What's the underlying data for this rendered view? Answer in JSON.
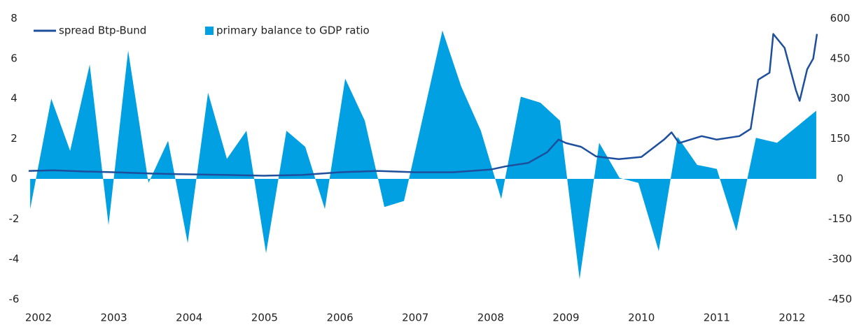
{
  "chart_data": {
    "type": "area-line",
    "xlim": [
      2001.85,
      2012.33
    ],
    "xticks": [
      2002,
      2003,
      2004,
      2005,
      2006,
      2007,
      2008,
      2009,
      2010,
      2011,
      2012
    ],
    "ylim": [
      -6,
      8
    ],
    "yticks": [
      -6,
      -4,
      -2,
      0,
      2,
      4,
      6,
      8
    ],
    "y2lim": [
      -450,
      600
    ],
    "y2ticks": [
      -450,
      -300,
      -150,
      0,
      150,
      300,
      450,
      600
    ],
    "legend": "top-left",
    "series": [
      {
        "name": "spread Btp-Bund",
        "type": "line",
        "axis": "y2",
        "color": "#1d4f9c",
        "x": [
          2001.87,
          2002.2,
          2002.6,
          2003.0,
          2003.5,
          2004.0,
          2004.5,
          2005.0,
          2005.5,
          2006.0,
          2006.5,
          2007.0,
          2007.5,
          2008.0,
          2008.2,
          2008.5,
          2008.75,
          2008.9,
          2009.0,
          2009.2,
          2009.4,
          2009.7,
          2010.0,
          2010.3,
          2010.4,
          2010.5,
          2010.8,
          2011.0,
          2011.3,
          2011.45,
          2011.55,
          2011.7,
          2011.75,
          2011.9,
          2011.95,
          2012.05,
          2012.1,
          2012.2,
          2012.28,
          2012.33
        ],
        "values": [
          30,
          32,
          28,
          25,
          20,
          17,
          15,
          12,
          15,
          25,
          30,
          25,
          25,
          35,
          47,
          60,
          100,
          147,
          134,
          120,
          84,
          74,
          82,
          147,
          174,
          134,
          160,
          147,
          160,
          187,
          371,
          397,
          542,
          490,
          437,
          332,
          292,
          410,
          450,
          542
        ]
      },
      {
        "name": "primary balance to GDP ratio",
        "type": "area",
        "axis": "y",
        "color": "#00a0e3",
        "x": [
          2001.89,
          2002.17,
          2002.42,
          2002.68,
          2002.93,
          2003.19,
          2003.46,
          2003.72,
          2003.98,
          2004.25,
          2004.5,
          2004.76,
          2005.02,
          2005.29,
          2005.54,
          2005.8,
          2006.07,
          2006.33,
          2006.59,
          2006.85,
          2007.36,
          2007.61,
          2007.87,
          2008.14,
          2008.4,
          2008.66,
          2008.92,
          2009.18,
          2009.44,
          2009.71,
          2009.96,
          2010.23,
          2010.48,
          2010.74,
          2011.0,
          2011.26,
          2011.52,
          2011.8,
          2012.32
        ],
        "values": [
          -1.5,
          4.0,
          1.4,
          5.7,
          -2.3,
          6.4,
          -0.2,
          1.9,
          -3.2,
          4.3,
          1.0,
          2.4,
          -3.7,
          2.4,
          1.6,
          -1.5,
          5.0,
          2.9,
          -1.4,
          -1.1,
          7.4,
          4.6,
          2.4,
          -1.0,
          4.1,
          3.8,
          2.9,
          -5.0,
          1.8,
          0.05,
          -0.2,
          -3.6,
          2.1,
          0.7,
          0.5,
          -2.6,
          2.05,
          1.8,
          3.4
        ]
      }
    ]
  }
}
